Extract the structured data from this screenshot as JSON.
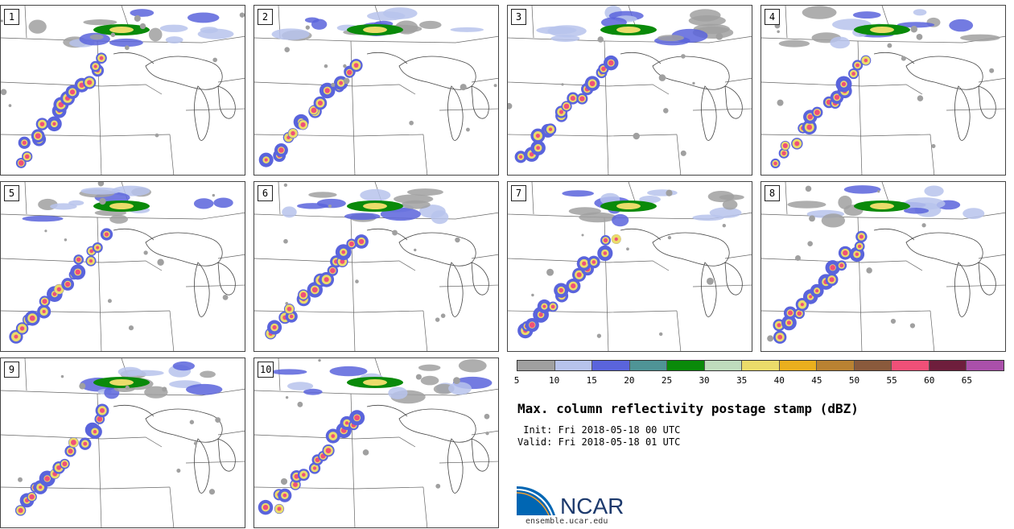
{
  "panels": [
    {
      "label": "1"
    },
    {
      "label": "2"
    },
    {
      "label": "3"
    },
    {
      "label": "4"
    },
    {
      "label": "5"
    },
    {
      "label": "6"
    },
    {
      "label": "7"
    },
    {
      "label": "8"
    },
    {
      "label": "9"
    },
    {
      "label": "10"
    }
  ],
  "colorbar": {
    "colors": [
      "#a0a0a0",
      "#b7c3ec",
      "#5a64dc",
      "#4f9496",
      "#0a8a0a",
      "#bfdcbd",
      "#ebdc6a",
      "#eaaf1e",
      "#b98232",
      "#8a5a3c",
      "#f05078",
      "#6e1e3c",
      "#aa50aa"
    ],
    "ticks": [
      "5",
      "10",
      "15",
      "20",
      "25",
      "30",
      "35",
      "40",
      "45",
      "50",
      "55",
      "60",
      "65"
    ]
  },
  "title": "Max. column reflectivity postage stamp (dBZ)",
  "init_line": " Init: Fri 2018-05-18 00 UTC",
  "valid_line": "Valid: Fri 2018-05-18 01 UTC",
  "logo": {
    "text": "NCAR",
    "url": "ensemble.ucar.edu"
  }
}
